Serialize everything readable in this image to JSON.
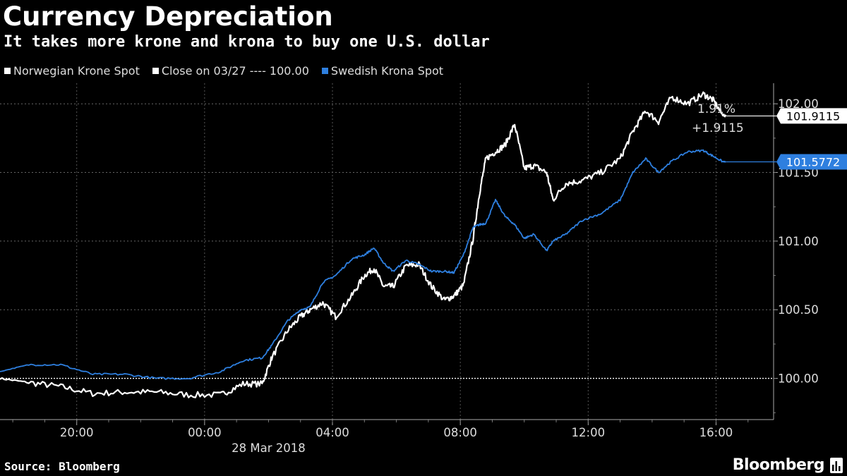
{
  "header": {
    "title": "Currency Depreciation",
    "subtitle": "It takes more krone and krona to buy one U.S. dollar"
  },
  "legend": [
    {
      "label": "Norwegian Krone Spot",
      "color": "#ffffff"
    },
    {
      "label": "Close on 03/27 ---- 100.00",
      "color": "#ffffff"
    },
    {
      "label": "Swedish Krona Spot",
      "color": "#2e7fdf"
    }
  ],
  "footer": {
    "source": "Source: Bloomberg",
    "brand": "Bloomberg"
  },
  "chart_data": {
    "type": "line",
    "title": "Currency Depreciation",
    "subtitle": "It takes more krone and krona to buy one U.S. dollar",
    "x_unit": "hours since 00:00, 28 Mar 2018 (negative = 27 Mar)",
    "xlim": [
      -6.4,
      17.8
    ],
    "ylim": [
      99.7,
      102.15
    ],
    "ylabel": "",
    "xlabel": "28 Mar 2018",
    "y_ticks": [
      100.0,
      100.5,
      101.0,
      101.5,
      102.0
    ],
    "y_tick_labels": [
      "100.00",
      "100.50",
      "101.00",
      "101.50",
      "102.00"
    ],
    "x_ticks": [
      -4,
      0,
      4,
      8,
      12,
      16
    ],
    "x_tick_labels": [
      "20:00",
      "00:00",
      "04:00",
      "08:00",
      "12:00",
      "16:00"
    ],
    "x_sublabel": "28 Mar 2018",
    "grid": true,
    "reference_line": {
      "value": 100.0,
      "label": "Close on 03/27 ---- 100.00"
    },
    "series": [
      {
        "name": "Norwegian Krone Spot",
        "color": "#ffffff",
        "last_value": "101.9115",
        "x": [
          -6.4,
          -5.5,
          -4.5,
          -3.5,
          -2.5,
          -1.5,
          -0.5,
          0.5,
          1.2,
          1.8,
          2.1,
          2.6,
          3.0,
          3.3,
          3.7,
          4.1,
          4.6,
          5.0,
          5.3,
          5.6,
          5.9,
          6.3,
          6.7,
          7.1,
          7.5,
          7.8,
          8.1,
          8.4,
          8.6,
          8.8,
          9.1,
          9.4,
          9.7,
          10.0,
          10.3,
          10.7,
          10.9,
          11.3,
          11.8,
          12.4,
          13.0,
          13.4,
          13.8,
          14.2,
          14.6,
          15.1,
          15.6,
          15.9,
          16.2,
          16.3
        ],
        "y": [
          100.0,
          99.97,
          99.94,
          99.89,
          99.9,
          99.9,
          99.88,
          99.88,
          99.96,
          99.96,
          100.15,
          100.35,
          100.45,
          100.5,
          100.55,
          100.45,
          100.6,
          100.75,
          100.8,
          100.67,
          100.67,
          100.82,
          100.83,
          100.67,
          100.57,
          100.6,
          100.68,
          101.02,
          101.35,
          101.6,
          101.65,
          101.7,
          101.85,
          101.53,
          101.55,
          101.5,
          101.3,
          101.42,
          101.44,
          101.5,
          101.6,
          101.8,
          101.95,
          101.87,
          102.05,
          102.0,
          102.07,
          102.03,
          101.92,
          101.9115
        ]
      },
      {
        "name": "Swedish Krona Spot",
        "color": "#2e7fdf",
        "last_value": "101.5772",
        "x": [
          -6.4,
          -5.5,
          -4.5,
          -3.5,
          -2.5,
          -1.5,
          -0.5,
          0.5,
          1.2,
          1.8,
          2.1,
          2.6,
          3.0,
          3.3,
          3.7,
          4.1,
          4.6,
          5.0,
          5.3,
          5.6,
          5.9,
          6.3,
          6.7,
          7.1,
          7.5,
          7.8,
          8.1,
          8.4,
          8.6,
          8.8,
          9.1,
          9.4,
          9.7,
          10.0,
          10.3,
          10.7,
          10.9,
          11.3,
          11.8,
          12.4,
          13.0,
          13.4,
          13.8,
          14.2,
          14.6,
          15.1,
          15.6,
          15.9,
          16.2,
          16.3
        ],
        "y": [
          100.05,
          100.1,
          100.1,
          100.03,
          100.03,
          100.0,
          100.0,
          100.05,
          100.13,
          100.15,
          100.24,
          100.42,
          100.5,
          100.52,
          100.7,
          100.75,
          100.87,
          100.9,
          100.95,
          100.84,
          100.78,
          100.86,
          100.83,
          100.78,
          100.78,
          100.77,
          100.9,
          101.1,
          101.12,
          101.13,
          101.3,
          101.18,
          101.12,
          101.02,
          101.05,
          100.93,
          101.0,
          101.05,
          101.15,
          101.2,
          101.3,
          101.5,
          101.6,
          101.5,
          101.58,
          101.65,
          101.66,
          101.62,
          101.58,
          101.5772
        ]
      }
    ],
    "annotations": {
      "pct_change": "1.91%",
      "abs_change": "+1.9115"
    }
  }
}
